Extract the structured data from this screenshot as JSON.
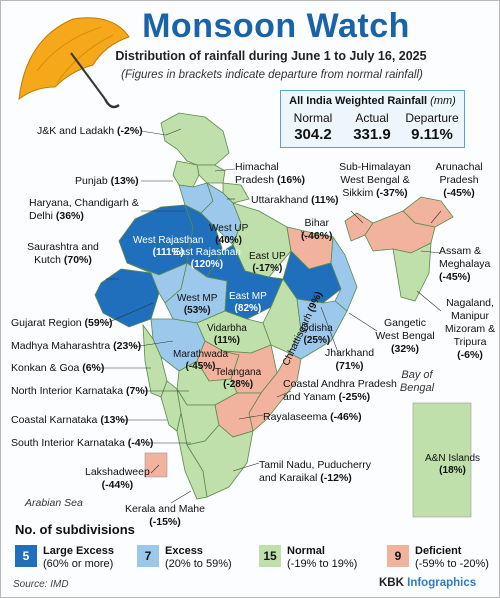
{
  "header": {
    "title": "Monsoon Watch",
    "subtitle": "Distribution of rainfall during June 1 to July 16, 2025",
    "note": "(Figures in brackets indicate departure from normal rainfall)"
  },
  "all_india": {
    "heading": "All India Weighted Rainfall",
    "unit": "(mm)",
    "normal_label": "Normal",
    "normal": "304.2",
    "actual_label": "Actual",
    "actual": "331.9",
    "departure_label": "Departure",
    "departure": "9.11%"
  },
  "colors": {
    "large_excess": "#1f6fbd",
    "excess": "#9cc8ec",
    "normal": "#bfe0ab",
    "deficient": "#f2b39e",
    "title": "#1a63a8"
  },
  "subdivisions": [
    {
      "name": "J&K and Ladakh",
      "dep": "(-2%)",
      "category": "normal"
    },
    {
      "name": "Punjab",
      "dep": "(13%)",
      "category": "normal"
    },
    {
      "name": "Haryana, Chandigarh & Delhi",
      "dep": "(36%)",
      "category": "excess"
    },
    {
      "name": "Saurashtra and Kutch",
      "dep": "(70%)",
      "category": "large_excess"
    },
    {
      "name": "Gujarat Region",
      "dep": "(59%)",
      "category": "excess"
    },
    {
      "name": "Madhya Maharashtra",
      "dep": "(23%)",
      "category": "excess"
    },
    {
      "name": "Konkan & Goa",
      "dep": "(6%)",
      "category": "normal"
    },
    {
      "name": "North Interior Karnataka",
      "dep": "(7%)",
      "category": "normal"
    },
    {
      "name": "Coastal Karnataka",
      "dep": "(13%)",
      "category": "normal"
    },
    {
      "name": "South Interior Karnataka",
      "dep": "(-4%)",
      "category": "normal"
    },
    {
      "name": "Lakshadweep",
      "dep": "(-44%)",
      "category": "deficient"
    },
    {
      "name": "Kerala and Mahe",
      "dep": "(-15%)",
      "category": "normal"
    },
    {
      "name": "Himachal Pradesh",
      "dep": "(16%)",
      "category": "normal"
    },
    {
      "name": "Uttarakhand",
      "dep": "(11%)",
      "category": "normal"
    },
    {
      "name": "Sub-Himalayan West Bengal & Sikkim",
      "dep": "(-37%)",
      "category": "deficient"
    },
    {
      "name": "Arunachal Pradesh",
      "dep": "(-45%)",
      "category": "deficient"
    },
    {
      "name": "Bihar",
      "dep": "(-46%)",
      "category": "deficient"
    },
    {
      "name": "Assam & Meghalaya",
      "dep": "(-45%)",
      "category": "deficient"
    },
    {
      "name": "Nagaland, Manipur Mizoram & Tripura",
      "dep": "(-6%)",
      "category": "normal"
    },
    {
      "name": "Gangetic West Bengal",
      "dep": "(32%)",
      "category": "excess"
    },
    {
      "name": "Jharkhand",
      "dep": "(71%)",
      "category": "large_excess"
    },
    {
      "name": "Coastal Andhra Pradesh and Yanam",
      "dep": "(-25%)",
      "category": "deficient"
    },
    {
      "name": "Rayalaseema",
      "dep": "(-46%)",
      "category": "deficient"
    },
    {
      "name": "Tamil Nadu, Puducherry and Karaikal",
      "dep": "(-12%)",
      "category": "normal"
    },
    {
      "name": "West Rajasthan",
      "dep": "(111%)",
      "category": "large_excess"
    },
    {
      "name": "East Rajasthan",
      "dep": "(120%)",
      "category": "large_excess"
    },
    {
      "name": "West UP",
      "dep": "(40%)",
      "category": "excess"
    },
    {
      "name": "East UP",
      "dep": "(-17%)",
      "category": "normal"
    },
    {
      "name": "West MP",
      "dep": "(53%)",
      "category": "excess"
    },
    {
      "name": "East MP",
      "dep": "(82%)",
      "category": "large_excess"
    },
    {
      "name": "Vidarbha",
      "dep": "(11%)",
      "category": "normal"
    },
    {
      "name": "Chhattisgarh",
      "dep": "(9%)",
      "category": "normal"
    },
    {
      "name": "Odisha",
      "dep": "(25%)",
      "category": "excess"
    },
    {
      "name": "Marathwada",
      "dep": "(-45%)",
      "category": "deficient"
    },
    {
      "name": "Telangana",
      "dep": "(-28%)",
      "category": "deficient"
    },
    {
      "name": "A&N Islands",
      "dep": "(18%)",
      "category": "normal"
    }
  ],
  "seas": {
    "arabian": "Arabian Sea",
    "bay": "Bay of Bengal"
  },
  "legend": {
    "title": "No. of subdivisions",
    "items": [
      {
        "count": "5",
        "label": "Large Excess",
        "range": "(60% or more)"
      },
      {
        "count": "7",
        "label": "Excess",
        "range": "(20% to 59%)"
      },
      {
        "count": "15",
        "label": "Normal",
        "range": "(-19% to 19%)"
      },
      {
        "count": "9",
        "label": "Deficient",
        "range": "(-59% to -20%)"
      }
    ]
  },
  "footer": {
    "source": "Source: IMD",
    "brand_a": "KBK ",
    "brand_b": "Infographics"
  }
}
